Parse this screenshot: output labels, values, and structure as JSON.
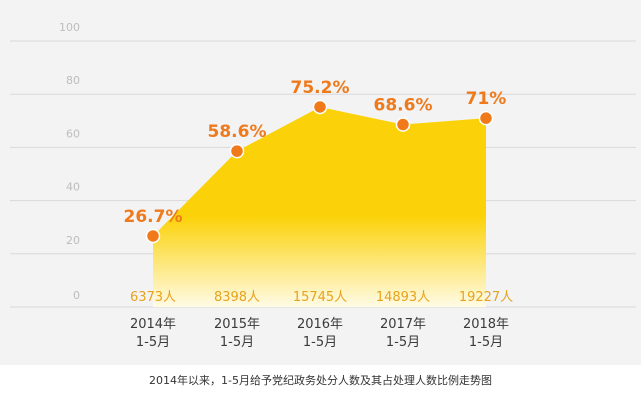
{
  "chart_data": {
    "type": "area",
    "categories": [
      [
        "2014年",
        "1-5月"
      ],
      [
        "2015年",
        "1-5月"
      ],
      [
        "2016年",
        "1-5月"
      ],
      [
        "2017年",
        "1-5月"
      ],
      [
        "2018年",
        "1-5月"
      ]
    ],
    "values": [
      26.7,
      58.6,
      75.2,
      68.6,
      71
    ],
    "value_labels": [
      "26.7%",
      "58.6%",
      "75.2%",
      "68.6%",
      "71%"
    ],
    "counts": [
      "6373人",
      "8398人",
      "15745人",
      "14893人",
      "19227人"
    ],
    "y_ticks": [
      "100",
      "80",
      "60",
      "40",
      "20",
      "0"
    ],
    "ylim": [
      0,
      100
    ],
    "grid": true,
    "colors": {
      "panel_bg": "#f3f3f3",
      "area_top": "#fbd20a",
      "area_bottom": "#fffbe6",
      "marker": "#f07a1a",
      "value_label": "#ee7a1c",
      "count_label": "#e8a21d",
      "category_label": "#3a3a3a",
      "tick_label": "#bdbdbd",
      "grid": "#d9d9d9"
    }
  },
  "caption": "2014年以来，1-5月给予党纪政务处分人数及其占处理人数比例走势图"
}
